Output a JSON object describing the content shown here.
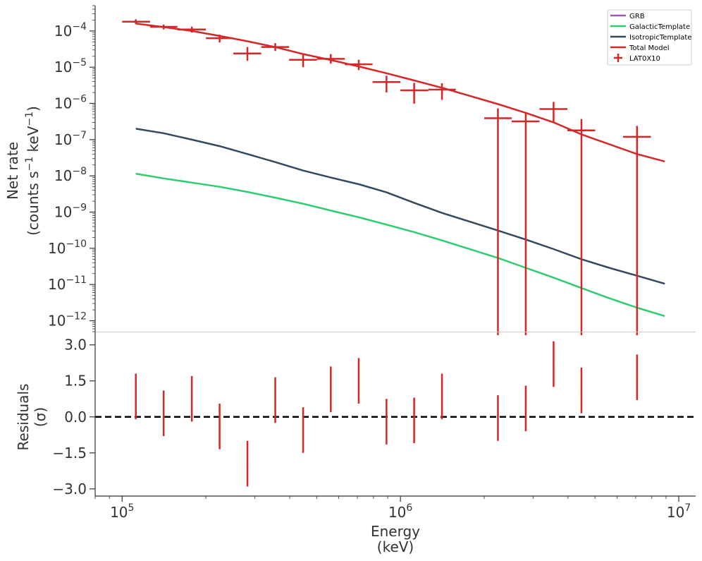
{
  "chart_data": [
    {
      "type": "line",
      "panel": "spectrum",
      "ylabel_line1": "Net rate",
      "ylabel_line2_parts": [
        "(counts s",
        "−1",
        " keV",
        "−1",
        ")"
      ],
      "xscale": "log",
      "yscale": "log",
      "xlim": [
        80000,
        11500000
      ],
      "ylim": [
        5e-13,
        0.0005
      ],
      "y_ticks": [
        {
          "value": 0.0001,
          "base": "10",
          "exp": "−4"
        },
        {
          "value": 1e-05,
          "base": "10",
          "exp": "−5"
        },
        {
          "value": 1e-06,
          "base": "10",
          "exp": "−6"
        },
        {
          "value": 1e-07,
          "base": "10",
          "exp": "−7"
        },
        {
          "value": 1e-08,
          "base": "10",
          "exp": "−8"
        },
        {
          "value": 1e-09,
          "base": "10",
          "exp": "−9"
        },
        {
          "value": 1e-10,
          "base": "10",
          "exp": "−10"
        },
        {
          "value": 1e-11,
          "base": "10",
          "exp": "−11"
        },
        {
          "value": 1e-12,
          "base": "10",
          "exp": "−12"
        }
      ],
      "legend": {
        "placement": "top-right",
        "entries": [
          {
            "label": "GRB",
            "color": "#9b59b6",
            "marker": "line"
          },
          {
            "label": "GalacticTemplate",
            "color": "#2ecc71",
            "marker": "line"
          },
          {
            "label": "IsotropicTemplate",
            "color": "#34495e",
            "marker": "line"
          },
          {
            "label": "Total Model",
            "color": "#d62728",
            "marker": "line"
          },
          {
            "label": "LAT0X10",
            "color": "#d62728",
            "marker": "errorbar"
          }
        ]
      },
      "series": [
        {
          "name": "Total Model",
          "color": "#d62728",
          "x": [
            112000,
            141000,
            178000,
            224000,
            282000,
            355000,
            447000,
            562000,
            708000,
            891000,
            1120000,
            1410000,
            2240000,
            2820000,
            3550000,
            4470000,
            7080000,
            8910000
          ],
          "y": [
            0.00016,
            0.000128,
            0.0001,
            7.3e-05,
            5.2e-05,
            3.6e-05,
            2.3e-05,
            1.58e-05,
            1.05e-05,
            6.8e-06,
            4.3e-06,
            2.7e-06,
            9.6e-07,
            5.5e-07,
            3e-07,
            1.4e-07,
            4e-08,
            2.5e-08
          ]
        },
        {
          "name": "IsotropicTemplate",
          "color": "#34495e",
          "x": [
            112000,
            141000,
            178000,
            224000,
            282000,
            355000,
            447000,
            562000,
            708000,
            891000,
            1120000,
            1410000,
            2240000,
            2820000,
            3550000,
            4470000,
            5620000,
            7080000,
            8910000
          ],
          "y": [
            2e-07,
            1.5e-07,
            1e-07,
            6.6e-08,
            4e-08,
            2.4e-08,
            1.4e-08,
            9e-09,
            5.9e-09,
            3.5e-09,
            1.8e-09,
            9.5e-10,
            3.1e-10,
            1.75e-10,
            9.5e-11,
            5e-11,
            2.9e-11,
            1.75e-11,
            1.05e-11
          ]
        },
        {
          "name": "GalacticTemplate",
          "color": "#2ecc71",
          "x": [
            112000,
            141000,
            178000,
            224000,
            282000,
            355000,
            447000,
            562000,
            708000,
            891000,
            1120000,
            1410000,
            2240000,
            2820000,
            3550000,
            4470000,
            5620000,
            7080000,
            8910000
          ],
          "y": [
            1.15e-08,
            8.5e-09,
            6.5e-09,
            5e-09,
            3.6e-09,
            2.5e-09,
            1.7e-09,
            1.1e-09,
            7.2e-10,
            4.5e-10,
            2.8e-10,
            1.65e-10,
            5.4e-11,
            2.9e-11,
            1.55e-11,
            8e-12,
            4.2e-12,
            2.3e-12,
            1.35e-12
          ]
        }
      ],
      "data_points": {
        "name": "LAT0X10",
        "color": "#d62728",
        "points": [
          {
            "x": 112000,
            "y": 0.00018,
            "xlo": 100000,
            "xhi": 126000,
            "ylo": 0.000155,
            "yhi": 0.00021
          },
          {
            "x": 141000,
            "y": 0.00013,
            "xlo": 126000,
            "xhi": 158000,
            "ylo": 0.00011,
            "yhi": 0.00015
          },
          {
            "x": 178000,
            "y": 0.00011,
            "xlo": 158000,
            "xhi": 200000,
            "ylo": 9e-05,
            "yhi": 0.000132
          },
          {
            "x": 224000,
            "y": 6.3e-05,
            "xlo": 200000,
            "xhi": 251000,
            "ylo": 4.8e-05,
            "yhi": 7.9e-05
          },
          {
            "x": 282000,
            "y": 2.4e-05,
            "xlo": 251000,
            "xhi": 316000,
            "ylo": 1.5e-05,
            "yhi": 3.6e-05
          },
          {
            "x": 355000,
            "y": 3.6e-05,
            "xlo": 316000,
            "xhi": 398000,
            "ylo": 2.8e-05,
            "yhi": 4.6e-05
          },
          {
            "x": 447000,
            "y": 1.6e-05,
            "xlo": 398000,
            "xhi": 501000,
            "ylo": 1e-05,
            "yhi": 2.2e-05
          },
          {
            "x": 562000,
            "y": 1.7e-05,
            "xlo": 501000,
            "xhi": 631000,
            "ylo": 1.25e-05,
            "yhi": 2.3e-05
          },
          {
            "x": 708000,
            "y": 1.2e-05,
            "xlo": 631000,
            "xhi": 794000,
            "ylo": 8.3e-06,
            "yhi": 1.6e-05
          },
          {
            "x": 891000,
            "y": 3.9e-06,
            "xlo": 794000,
            "xhi": 1000000,
            "ylo": 2e-06,
            "yhi": 5.8e-06
          },
          {
            "x": 1120000,
            "y": 2.3e-06,
            "xlo": 1000000,
            "xhi": 1260000,
            "ylo": 9.8e-07,
            "yhi": 3.7e-06
          },
          {
            "x": 1410000,
            "y": 2.4e-06,
            "xlo": 1260000,
            "xhi": 1580000,
            "ylo": 1.25e-06,
            "yhi": 3.6e-06
          },
          {
            "x": 2240000,
            "y": 3.9e-07,
            "xlo": 2000000,
            "xhi": 2510000,
            "ylo": 4e-13,
            "yhi": 7.3e-07
          },
          {
            "x": 2820000,
            "y": 3.2e-07,
            "xlo": 2510000,
            "xhi": 3160000,
            "ylo": 4e-13,
            "yhi": 5.8e-07
          },
          {
            "x": 3550000,
            "y": 7e-07,
            "xlo": 3160000,
            "xhi": 3980000,
            "ylo": 2.9e-07,
            "yhi": 1.1e-06
          },
          {
            "x": 4470000,
            "y": 1.8e-07,
            "xlo": 3980000,
            "xhi": 5010000,
            "ylo": 4e-13,
            "yhi": 3.7e-07
          },
          {
            "x": 7080000,
            "y": 1.2e-07,
            "xlo": 6310000,
            "xhi": 7940000,
            "ylo": 4e-13,
            "yhi": 2.4e-07
          }
        ]
      }
    },
    {
      "type": "scatter",
      "panel": "residuals",
      "ylabel_line1": "Residuals",
      "ylabel_line2": "(σ)",
      "xlabel_line1": "Energy",
      "xlabel_line2": "(keV)",
      "xscale": "log",
      "xlim": [
        80000,
        11500000
      ],
      "ylim": [
        -3.3,
        3.55
      ],
      "y_ticks": [
        {
          "value": 3.0,
          "label": "3.0"
        },
        {
          "value": 1.5,
          "label": "1.5"
        },
        {
          "value": 0.0,
          "label": "0.0"
        },
        {
          "value": -1.5,
          "label": "−1.5"
        },
        {
          "value": -3.0,
          "label": "−3.0"
        }
      ],
      "x_ticks": [
        {
          "value": 100000,
          "base": "10",
          "exp": "5"
        },
        {
          "value": 1000000,
          "base": "10",
          "exp": "6"
        },
        {
          "value": 10000000,
          "base": "10",
          "exp": "7"
        }
      ],
      "zero_line": {
        "y": 0,
        "style": "dashed",
        "color": "#000000"
      },
      "points": [
        {
          "x": 112000,
          "y": 0.85,
          "err": 0.95
        },
        {
          "x": 141000,
          "y": 0.15,
          "err": 0.95
        },
        {
          "x": 178000,
          "y": 0.75,
          "err": 0.95
        },
        {
          "x": 224000,
          "y": -0.4,
          "err": 0.95
        },
        {
          "x": 282000,
          "y": -1.95,
          "err": 0.95
        },
        {
          "x": 355000,
          "y": 0.7,
          "err": 0.95
        },
        {
          "x": 447000,
          "y": -0.55,
          "err": 0.95
        },
        {
          "x": 562000,
          "y": 1.15,
          "err": 0.95
        },
        {
          "x": 708000,
          "y": 1.5,
          "err": 0.95
        },
        {
          "x": 891000,
          "y": -0.2,
          "err": 0.95
        },
        {
          "x": 1120000,
          "y": -0.15,
          "err": 0.95
        },
        {
          "x": 1410000,
          "y": 0.85,
          "err": 0.95
        },
        {
          "x": 2240000,
          "y": -0.05,
          "err": 0.95
        },
        {
          "x": 2820000,
          "y": 0.35,
          "err": 0.95
        },
        {
          "x": 3550000,
          "y": 2.2,
          "err": 0.95
        },
        {
          "x": 4470000,
          "y": 1.1,
          "err": 0.95
        },
        {
          "x": 7080000,
          "y": 1.65,
          "err": 0.95
        }
      ]
    }
  ]
}
